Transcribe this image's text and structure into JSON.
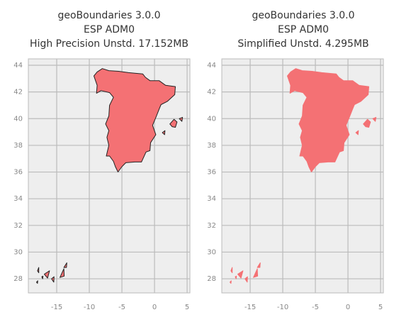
{
  "chart_data": [
    {
      "type": "map",
      "title": [
        "geoBoundaries 3.0.0",
        "ESP ADM0",
        "High Precision Unstd. 17.152MB"
      ],
      "xlim": [
        -19.35,
        5.43
      ],
      "ylim": [
        26.94,
        44.48
      ],
      "xticks": [
        -15,
        -10,
        -5,
        0,
        5
      ],
      "yticks": [
        28,
        30,
        32,
        34,
        36,
        38,
        40,
        42,
        44
      ],
      "grid": true,
      "color": "#f47174",
      "edgecolor": "#222222"
    },
    {
      "type": "map",
      "title": [
        "geoBoundaries 3.0.0",
        "ESP ADM0",
        "Simplified Unstd. 4.295MB"
      ],
      "xlim": [
        -19.35,
        5.43
      ],
      "ylim": [
        26.94,
        44.48
      ],
      "xticks": [
        -15,
        -10,
        -5,
        0,
        5
      ],
      "yticks": [
        28,
        30,
        32,
        34,
        36,
        38,
        40,
        42,
        44
      ],
      "grid": true,
      "color": "#f47174",
      "edgecolor": "#f47174"
    }
  ]
}
